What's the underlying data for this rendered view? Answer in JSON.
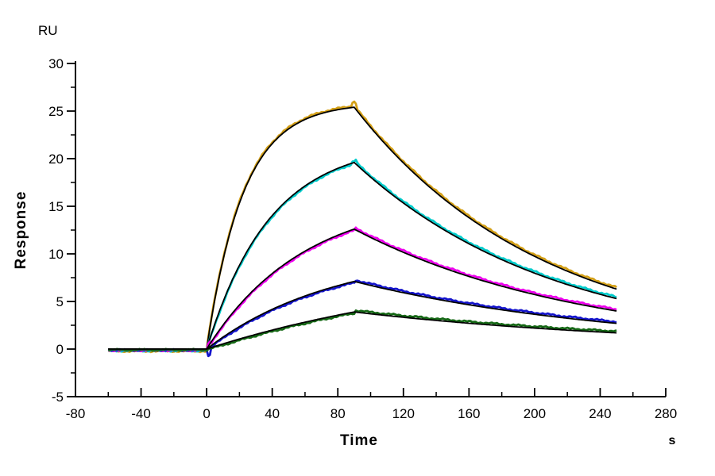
{
  "figure": {
    "background": "#ffffff",
    "axis_color": "#000000"
  },
  "labels": {
    "y_unit": "RU",
    "y_axis_title": "Response",
    "x_axis_title": "Time",
    "x_unit": "s"
  },
  "chart_data": {
    "type": "line",
    "title": "",
    "ylabel": "Response",
    "yunit": "RU",
    "xlabel": "Time",
    "xunit": "s",
    "xlim": [
      -80,
      280
    ],
    "ylim": [
      -5,
      30
    ],
    "xticks_major": [
      -80,
      -40,
      0,
      40,
      80,
      120,
      160,
      200,
      240,
      280
    ],
    "xtick_minor_step": 20,
    "yticks_major": [
      -5,
      0,
      5,
      10,
      15,
      20,
      25,
      30
    ],
    "ytick_minor_step": 2.5,
    "grid": false,
    "legend": "none",
    "phases": {
      "baseline_start_s": -60,
      "injection_start_s": 0,
      "injection_end_s": 90,
      "data_end_s": 250,
      "baseline_ru": 0
    },
    "fit_color": "#000000",
    "series": [
      {
        "name": "sensorgram-highest-conc",
        "data_color": "#D4A017",
        "peak_ru": 25.4,
        "end_ru": 6.3,
        "k_obs": 0.045,
        "assoc_side": 1,
        "spike_at_stop_ru": 0.45,
        "spike_at_start_ru": 0
      },
      {
        "name": "sensorgram-conc-2",
        "data_color": "#00CCCC",
        "peak_ru": 19.6,
        "end_ru": 5.3,
        "k_obs": 0.026,
        "assoc_side": -1,
        "spike_at_stop_ru": 0.25,
        "spike_at_start_ru": 0
      },
      {
        "name": "sensorgram-conc-3",
        "data_color": "#EE00EE",
        "peak_ru": 12.6,
        "end_ru": 4.0,
        "k_obs": 0.017,
        "assoc_side": -1,
        "spike_at_stop_ru": 0,
        "spike_at_start_ru": 0.3
      },
      {
        "name": "sensorgram-conc-4",
        "data_color": "#1414CC",
        "peak_ru": 7.1,
        "end_ru": 2.7,
        "k_obs": 0.013,
        "assoc_side": -1,
        "spike_at_stop_ru": 0,
        "spike_at_start_ru": -0.75
      },
      {
        "name": "sensorgram-lowest-conc",
        "data_color": "#156815",
        "peak_ru": 3.9,
        "end_ru": 1.7,
        "k_obs": 0.006,
        "assoc_side": -1,
        "spike_at_stop_ru": 0,
        "spike_at_start_ru": 0
      }
    ],
    "baseline_data_offsets_ru": [
      -0.22,
      -0.17,
      -0.13,
      -0.1,
      -0.08
    ]
  }
}
